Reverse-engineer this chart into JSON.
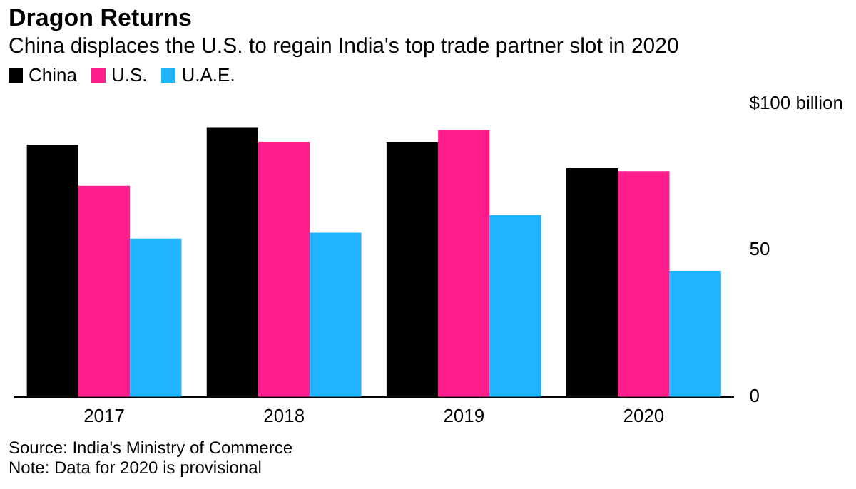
{
  "chart_data": {
    "type": "bar",
    "title": "Dragon Returns",
    "subtitle": "China displaces the U.S. to regain India's top trade partner slot in 2020",
    "categories": [
      "2017",
      "2018",
      "2019",
      "2020"
    ],
    "series": [
      {
        "name": "China",
        "color": "#000000",
        "values": [
          86,
          92,
          87,
          78
        ]
      },
      {
        "name": "U.S.",
        "color": "#ff1e8c",
        "values": [
          72,
          87,
          91,
          77
        ]
      },
      {
        "name": "U.A.E.",
        "color": "#1eb4ff",
        "values": [
          54,
          56,
          62,
          43
        ]
      }
    ],
    "ylim": [
      0,
      100
    ],
    "yticks": [
      0,
      50,
      {
        "value": 100,
        "label": "$100 billion"
      }
    ],
    "grid": false,
    "legend": "top left",
    "annotations": [
      "Source: India's Ministry of Commerce",
      "Note: Data for 2020 is provisional"
    ]
  }
}
